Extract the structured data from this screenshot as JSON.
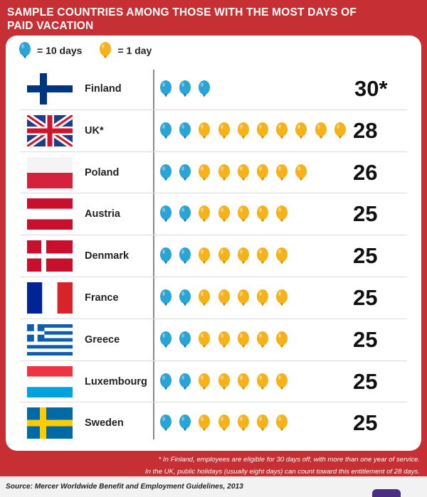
{
  "title": "SAMPLE COUNTRIES AMONG THOSE WITH THE MOST DAYS OF\nPAID VACATION",
  "colors": {
    "background": "#c62f33",
    "blue_balloon": "#2aa3d5",
    "orange_balloon": "#f5b21b"
  },
  "legend": [
    {
      "label": "= 10 days",
      "color": "blue"
    },
    {
      "label": "= 1 day",
      "color": "orange"
    }
  ],
  "chart_data": {
    "type": "pictograph",
    "unit_blue": 10,
    "unit_orange": 1,
    "rows": [
      {
        "country": "Finland",
        "flag": "finland",
        "value": 30,
        "label": "30*",
        "blue": 3,
        "orange": 0
      },
      {
        "country": "UK*",
        "flag": "uk",
        "value": 28,
        "label": "28",
        "blue": 2,
        "orange": 8
      },
      {
        "country": "Poland",
        "flag": "poland",
        "value": 26,
        "label": "26",
        "blue": 2,
        "orange": 6
      },
      {
        "country": "Austria",
        "flag": "austria",
        "value": 25,
        "label": "25",
        "blue": 2,
        "orange": 5
      },
      {
        "country": "Denmark",
        "flag": "denmark",
        "value": 25,
        "label": "25",
        "blue": 2,
        "orange": 5
      },
      {
        "country": "France",
        "flag": "france",
        "value": 25,
        "label": "25",
        "blue": 2,
        "orange": 5
      },
      {
        "country": "Greece",
        "flag": "greece",
        "value": 25,
        "label": "25",
        "blue": 2,
        "orange": 5
      },
      {
        "country": "Luxembourg",
        "flag": "luxembourg",
        "value": 25,
        "label": "25",
        "blue": 2,
        "orange": 5
      },
      {
        "country": "Sweden",
        "flag": "sweden",
        "value": 25,
        "label": "25",
        "blue": 2,
        "orange": 5
      }
    ]
  },
  "footnotes": [
    "* In Finland, employees are eligible for 30 days off, with more than one year of service.",
    "In the UK, public holidays (usually eight days) can count toward this entitlement of 28 days."
  ],
  "source": "Source: Mercer Worldwide Benefit and Employment Guidelines, 2013"
}
